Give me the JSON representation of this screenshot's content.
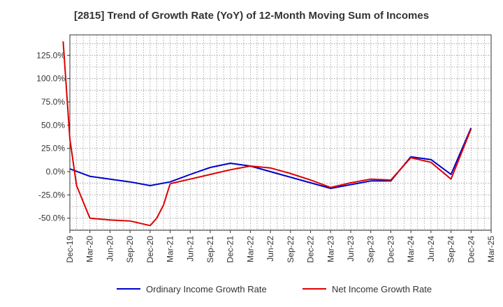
{
  "chart_data": {
    "type": "line",
    "title": "[2815]  Trend of Growth Rate (YoY) of 12-Month Moving Sum of Incomes",
    "xlabel": "",
    "ylabel": "",
    "x_ticks": [
      "Dec-19",
      "Mar-20",
      "Jun-20",
      "Sep-20",
      "Dec-20",
      "Mar-21",
      "Jun-21",
      "Sep-21",
      "Dec-21",
      "Mar-22",
      "Jun-22",
      "Sep-22",
      "Dec-22",
      "Mar-23",
      "Jun-23",
      "Sep-23",
      "Dec-23",
      "Mar-24",
      "Jun-24",
      "Sep-24",
      "Dec-24",
      "Mar-25"
    ],
    "y_ticks": [
      -50,
      -25,
      0,
      25,
      50,
      75,
      100,
      125
    ],
    "y_tick_suffix": "%",
    "ylim": [
      -63,
      147
    ],
    "grid": true,
    "legend_position": "bottom",
    "series": [
      {
        "name": "Ordinary Income Growth Rate",
        "color": "#0000cc",
        "points": [
          [
            "Dec-19",
            3
          ],
          [
            "Mar-20",
            -5
          ],
          [
            "Jun-20",
            -8
          ],
          [
            "Sep-20",
            -11
          ],
          [
            "Dec-20",
            -15
          ],
          [
            "Mar-21",
            -11
          ],
          [
            "Jun-21",
            -3
          ],
          [
            "Sep-21",
            4.5
          ],
          [
            "Dec-21",
            9
          ],
          [
            "Mar-22",
            6
          ],
          [
            "Jun-22",
            0
          ],
          [
            "Sep-22",
            -6
          ],
          [
            "Dec-22",
            -12
          ],
          [
            "Mar-23",
            -18
          ],
          [
            "Jun-23",
            -14
          ],
          [
            "Sep-23",
            -10
          ],
          [
            "Dec-23",
            -10
          ],
          [
            "Mar-24",
            16
          ],
          [
            "Jun-24",
            13
          ],
          [
            "Sep-24",
            -3
          ],
          [
            "Dec-24",
            47
          ]
        ]
      },
      {
        "name": "Net Income Growth Rate",
        "color": "#dd0000",
        "points": [
          [
            "Nov-19",
            140
          ],
          [
            "Dec-19",
            35
          ],
          [
            "Jan-20",
            -15
          ],
          [
            "Mar-20",
            -50
          ],
          [
            "Jun-20",
            -52
          ],
          [
            "Sep-20",
            -53
          ],
          [
            "Dec-20",
            -58
          ],
          [
            "Jan-21",
            -50
          ],
          [
            "Feb-21",
            -36
          ],
          [
            "Mar-21",
            -13
          ],
          [
            "Jun-21",
            -8
          ],
          [
            "Sep-21",
            -3
          ],
          [
            "Dec-21",
            2
          ],
          [
            "Mar-22",
            6
          ],
          [
            "Jun-22",
            4
          ],
          [
            "Sep-22",
            -2
          ],
          [
            "Dec-22",
            -9
          ],
          [
            "Mar-23",
            -17
          ],
          [
            "Jun-23",
            -12
          ],
          [
            "Sep-23",
            -8
          ],
          [
            "Dec-23",
            -9
          ],
          [
            "Mar-24",
            15
          ],
          [
            "Jun-24",
            10
          ],
          [
            "Sep-24",
            -8
          ],
          [
            "Dec-24",
            46
          ]
        ]
      }
    ]
  }
}
